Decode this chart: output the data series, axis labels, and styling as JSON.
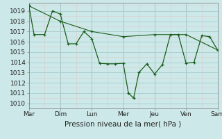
{
  "xlabel": "Pression niveau de la mer( hPa )",
  "bg_color": "#cce8e8",
  "grid_major_color": "#aacccc",
  "grid_minor_color": "#ddc8c8",
  "line_color": "#1a5c1a",
  "ylim": [
    1009.5,
    1019.8
  ],
  "yticks": [
    1010,
    1011,
    1012,
    1013,
    1014,
    1015,
    1016,
    1017,
    1018,
    1019
  ],
  "day_labels": [
    "Mar",
    "Dim",
    "Lun",
    "Mer",
    "Jeu",
    "Ven",
    "Sam"
  ],
  "day_positions": [
    0,
    2,
    4,
    6,
    8,
    10,
    12
  ],
  "xlim": [
    0,
    12
  ],
  "line1_x": [
    0,
    0.33,
    1.0,
    1.5,
    2.0,
    2.5,
    3.0,
    3.5,
    4.0,
    4.5,
    5.0,
    5.5,
    6.0,
    6.33,
    6.66,
    7.0,
    7.5,
    8.0,
    8.5,
    9.0,
    9.5,
    10.0,
    10.5,
    11.0,
    11.5,
    12.0
  ],
  "line1_y": [
    1019.5,
    1016.7,
    1016.7,
    1019.0,
    1018.7,
    1015.8,
    1015.8,
    1017.0,
    1016.3,
    1013.9,
    1013.85,
    1013.85,
    1013.9,
    1011.0,
    1010.5,
    1013.0,
    1013.85,
    1012.85,
    1013.8,
    1016.7,
    1016.7,
    1013.9,
    1014.0,
    1016.6,
    1016.5,
    1015.2
  ],
  "line2_x": [
    0,
    2,
    4,
    6,
    8,
    10,
    12
  ],
  "line2_y": [
    1019.5,
    1018.0,
    1017.0,
    1016.5,
    1016.7,
    1016.7,
    1015.2
  ],
  "tick_fontsize": 6.5,
  "label_fontsize": 7.5,
  "vline_positions": [
    2,
    4,
    6,
    8,
    10,
    12
  ]
}
